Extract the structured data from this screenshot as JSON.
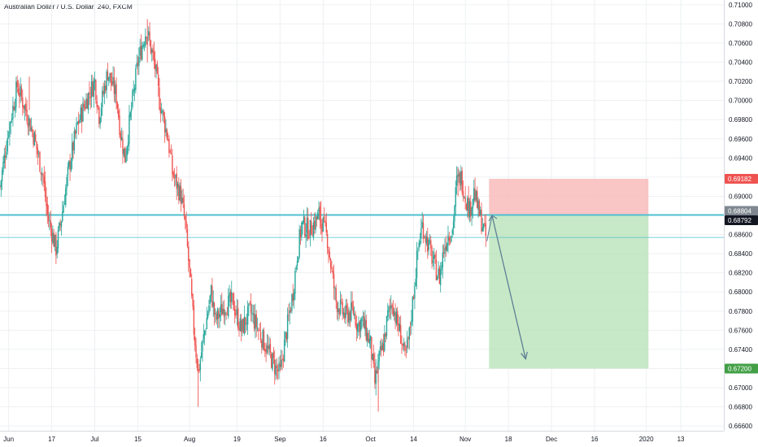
{
  "chart_data": {
    "type": "candlestick",
    "title": "Australian Dollar / U.S. Dollar, 240, FXCM",
    "colors": {
      "up": "#26a69a",
      "down": "#ef5350",
      "line": "#4fc0d0",
      "stop_zone": "#f7b7b7",
      "target_zone": "#b9e3b9",
      "arrow": "#5f7f95"
    },
    "ylim": [
      0.6655,
      0.7105
    ],
    "yticks": [
      "0.66600",
      "0.66800",
      "0.67000",
      "0.67200",
      "0.67400",
      "0.67600",
      "0.67800",
      "0.68000",
      "0.68200",
      "0.68400",
      "0.68600",
      "0.68800",
      "0.69000",
      "0.69200",
      "0.69400",
      "0.69600",
      "0.69800",
      "0.70000",
      "0.70200",
      "0.70400",
      "0.70600",
      "0.70800",
      "0.71000"
    ],
    "xlim": [
      0,
      168
    ],
    "xticks": [
      {
        "label": "Jun",
        "x": 2
      },
      {
        "label": "17",
        "x": 12
      },
      {
        "label": "Jul",
        "x": 22
      },
      {
        "label": "15",
        "x": 32
      },
      {
        "label": "Aug",
        "x": 44
      },
      {
        "label": "19",
        "x": 55
      },
      {
        "label": "Sep",
        "x": 65
      },
      {
        "label": "16",
        "x": 75
      },
      {
        "label": "Oct",
        "x": 86
      },
      {
        "label": "14",
        "x": 96
      },
      {
        "label": "Nov",
        "x": 108
      },
      {
        "label": "18",
        "x": 118
      },
      {
        "label": "Dec",
        "x": 128
      },
      {
        "label": "16",
        "x": 138
      },
      {
        "label": "2020",
        "x": 150
      },
      {
        "label": "13",
        "x": 158
      }
    ],
    "price_path": [
      [
        0,
        0.691
      ],
      [
        2,
        0.697
      ],
      [
        4,
        0.7015
      ],
      [
        6,
        0.699
      ],
      [
        8,
        0.696
      ],
      [
        10,
        0.692
      ],
      [
        11,
        0.688
      ],
      [
        13,
        0.6845
      ],
      [
        14,
        0.687
      ],
      [
        16,
        0.693
      ],
      [
        18,
        0.6975
      ],
      [
        20,
        0.7
      ],
      [
        22,
        0.702
      ],
      [
        23,
        0.6985
      ],
      [
        25,
        0.703
      ],
      [
        27,
        0.7005
      ],
      [
        28,
        0.6965
      ],
      [
        29,
        0.694
      ],
      [
        30,
        0.6975
      ],
      [
        32,
        0.704
      ],
      [
        34,
        0.7075
      ],
      [
        35,
        0.7055
      ],
      [
        36,
        0.7035
      ],
      [
        37,
        0.7
      ],
      [
        39,
        0.696
      ],
      [
        40,
        0.6925
      ],
      [
        42,
        0.69
      ],
      [
        43,
        0.687
      ],
      [
        44,
        0.682
      ],
      [
        45,
        0.676
      ],
      [
        46,
        0.6715
      ],
      [
        47,
        0.6745
      ],
      [
        49,
        0.68
      ],
      [
        50,
        0.677
      ],
      [
        52,
        0.6785
      ],
      [
        54,
        0.679
      ],
      [
        56,
        0.676
      ],
      [
        58,
        0.678
      ],
      [
        60,
        0.676
      ],
      [
        62,
        0.674
      ],
      [
        64,
        0.672
      ],
      [
        65,
        0.6715
      ],
      [
        66,
        0.6745
      ],
      [
        68,
        0.68
      ],
      [
        69,
        0.684
      ],
      [
        70,
        0.687
      ],
      [
        72,
        0.6865
      ],
      [
        74,
        0.688
      ],
      [
        75,
        0.687
      ],
      [
        76,
        0.6855
      ],
      [
        77,
        0.682
      ],
      [
        78,
        0.679
      ],
      [
        80,
        0.6775
      ],
      [
        82,
        0.678
      ],
      [
        83,
        0.6765
      ],
      [
        84,
        0.677
      ],
      [
        86,
        0.6745
      ],
      [
        87,
        0.6705
      ],
      [
        88,
        0.673
      ],
      [
        89,
        0.6745
      ],
      [
        90,
        0.6775
      ],
      [
        91,
        0.679
      ],
      [
        92,
        0.677
      ],
      [
        93,
        0.6755
      ],
      [
        94,
        0.673
      ],
      [
        95,
        0.6755
      ],
      [
        96,
        0.68
      ],
      [
        97,
        0.6845
      ],
      [
        98,
        0.687
      ],
      [
        99,
        0.6855
      ],
      [
        100,
        0.684
      ],
      [
        101,
        0.6825
      ],
      [
        102,
        0.6815
      ],
      [
        103,
        0.6845
      ],
      [
        104,
        0.686
      ],
      [
        105,
        0.6865
      ],
      [
        106,
        0.6915
      ],
      [
        107,
        0.692
      ],
      [
        108,
        0.69
      ],
      [
        109,
        0.6885
      ],
      [
        110,
        0.6905
      ],
      [
        111,
        0.6885
      ],
      [
        112,
        0.687
      ],
      [
        113,
        0.6853
      ]
    ],
    "horizontal_lines": [
      {
        "price": 0.68804,
        "style": "thick"
      },
      {
        "price": 0.6857,
        "style": "thin"
      }
    ],
    "position": {
      "type": "short",
      "start_x": 113.5,
      "end_x": 150.5,
      "entry": 0.68804,
      "stop": 0.69182,
      "target": 0.672,
      "current_price": 0.68792
    },
    "arrow": {
      "from": [
        114.2,
        0.688
      ],
      "to": [
        122.0,
        0.673
      ]
    },
    "price_tags": [
      {
        "label": "0.69182",
        "price": 0.69182,
        "bg": "#ef5350",
        "fg": "#ffffff"
      },
      {
        "label": "0.68804",
        "price": 0.68804,
        "bg": "#7f8790",
        "fg": "#ffffff"
      },
      {
        "label": "0.68792",
        "price": 0.68792,
        "bg": "#131722",
        "fg": "#ffffff"
      },
      {
        "label": "0.67200",
        "price": 0.672,
        "bg": "#43a047",
        "fg": "#ffffff"
      }
    ],
    "grid": true,
    "xlabel": "",
    "ylabel": ""
  }
}
